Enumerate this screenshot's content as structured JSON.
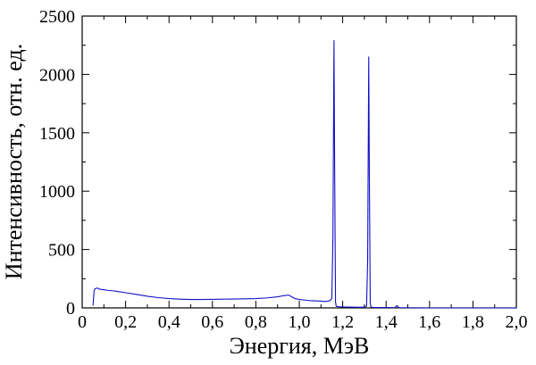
{
  "chart_data": {
    "type": "line",
    "title": "",
    "xlabel": "Энергия, МэВ",
    "ylabel": "Интенсивность, отн. ед.",
    "xlim": [
      0.0,
      2.0
    ],
    "ylim": [
      0,
      2500
    ],
    "x_ticks": [
      0.0,
      0.2,
      0.4,
      0.6,
      0.8,
      1.0,
      1.2,
      1.4,
      1.6,
      1.8,
      2.0
    ],
    "x_tick_labels": [
      "0",
      "0,2",
      "0,4",
      "0,6",
      "0,8",
      "1,0",
      "1,2",
      "1,4",
      "1,6",
      "1,8",
      "2,0"
    ],
    "y_ticks": [
      0,
      500,
      1000,
      1500,
      2000,
      2500
    ],
    "y_tick_labels": [
      "0",
      "500",
      "1000",
      "1500",
      "2000",
      "2500"
    ],
    "grid": false,
    "line_color": "#1010c8",
    "series": [
      {
        "x": [
          0.05,
          0.055,
          0.06,
          0.07,
          0.08,
          0.1,
          0.12,
          0.15,
          0.2,
          0.25,
          0.3,
          0.35,
          0.4,
          0.45,
          0.5,
          0.55,
          0.6,
          0.65,
          0.7,
          0.75,
          0.8,
          0.85,
          0.9,
          0.93,
          0.95,
          0.96,
          0.97,
          0.98,
          1.0,
          1.02,
          1.05,
          1.08,
          1.1,
          1.12,
          1.14,
          1.15,
          1.155,
          1.16,
          1.163,
          1.167,
          1.17,
          1.175,
          1.18,
          1.2,
          1.25,
          1.28,
          1.3,
          1.31,
          1.315,
          1.32,
          1.323,
          1.327,
          1.33,
          1.335,
          1.34,
          1.36,
          1.4,
          1.44,
          1.445,
          1.45,
          1.455,
          1.46,
          1.5,
          1.6,
          1.8,
          2.0
        ],
        "y": [
          20,
          150,
          165,
          170,
          160,
          155,
          150,
          145,
          130,
          115,
          100,
          88,
          80,
          75,
          72,
          72,
          73,
          75,
          76,
          78,
          80,
          85,
          95,
          105,
          110,
          100,
          90,
          80,
          72,
          68,
          62,
          60,
          58,
          55,
          60,
          80,
          600,
          2290,
          1200,
          50,
          15,
          12,
          10,
          8,
          6,
          5,
          6,
          15,
          400,
          2150,
          1100,
          40,
          8,
          5,
          4,
          3,
          3,
          2,
          12,
          20,
          10,
          2,
          1,
          0,
          0,
          0
        ]
      }
    ]
  }
}
